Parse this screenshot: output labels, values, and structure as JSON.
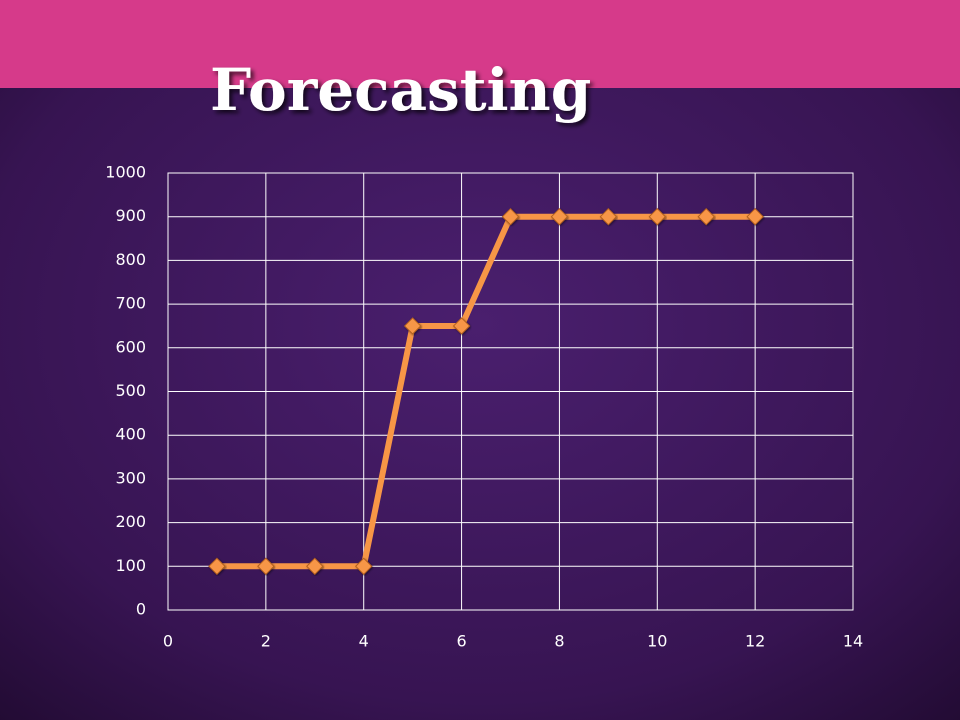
{
  "chart_data": {
    "type": "line",
    "title": "Forecasting",
    "x": [
      1,
      2,
      3,
      4,
      5,
      6,
      7,
      8,
      9,
      10,
      11,
      12
    ],
    "values": [
      100,
      100,
      100,
      100,
      650,
      650,
      900,
      900,
      900,
      900,
      900,
      900
    ],
    "color": "#f79646",
    "xlim": [
      0,
      14
    ],
    "xticks": [
      0,
      2,
      4,
      6,
      8,
      10,
      12,
      14
    ],
    "ylim": [
      0,
      1000
    ],
    "yticks": [
      0,
      100,
      200,
      300,
      400,
      500,
      600,
      700,
      800,
      900,
      1000
    ],
    "grid": true
  }
}
